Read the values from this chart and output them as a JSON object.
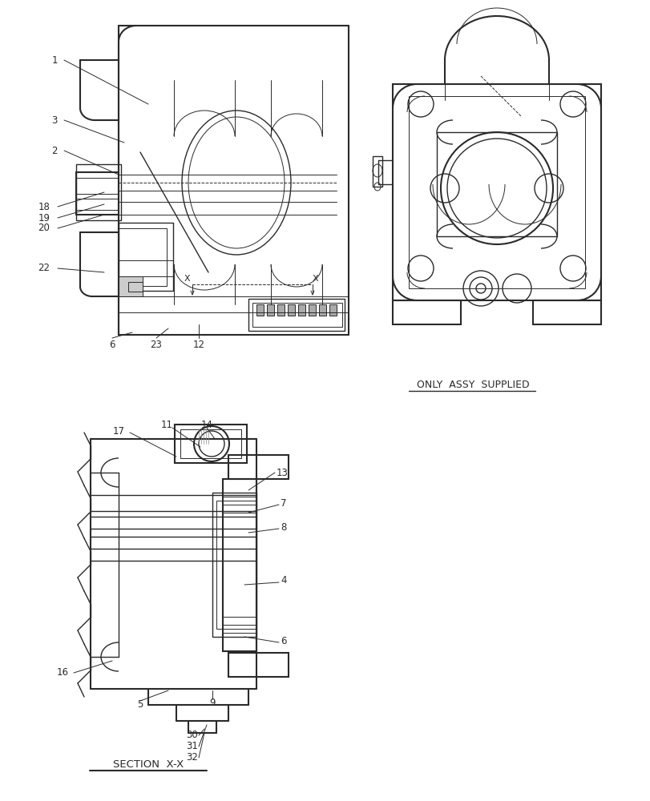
{
  "bg_color": "#ffffff",
  "lc": "#2a2a2a",
  "fig_width": 8.12,
  "fig_height": 10.0,
  "dpi": 100,
  "only_assy_text": "ONLY  ASSY  SUPPLIED",
  "section_text": "SECTION  X-X"
}
